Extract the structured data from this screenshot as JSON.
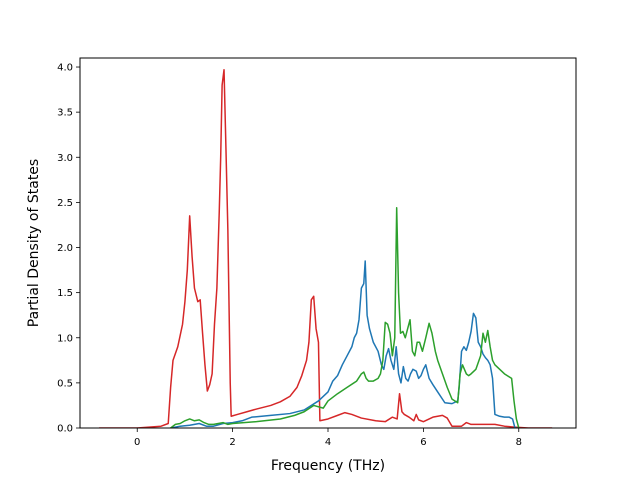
{
  "chart_data": {
    "type": "line",
    "title": "",
    "xlabel": "Frequency (THz)",
    "ylabel": "Partial Density of States",
    "xlim": [
      -1.2,
      9.2
    ],
    "ylim": [
      0.0,
      4.1
    ],
    "xticks": [
      0,
      2,
      4,
      6,
      8
    ],
    "xtick_labels": [
      "0",
      "2",
      "4",
      "6",
      "8"
    ],
    "yticks": [
      0.0,
      0.5,
      1.0,
      1.5,
      2.0,
      2.5,
      3.0,
      3.5,
      4.0
    ],
    "ytick_labels": [
      "0.0",
      "0.5",
      "1.0",
      "1.5",
      "2.0",
      "2.5",
      "3.0",
      "3.5",
      "4.0"
    ],
    "grid": false,
    "legend": "none",
    "series": [
      {
        "color": "#d62728",
        "points": [
          [
            -0.8,
            0.0
          ],
          [
            0.0,
            0.0
          ],
          [
            0.5,
            0.02
          ],
          [
            0.65,
            0.05
          ],
          [
            0.7,
            0.45
          ],
          [
            0.75,
            0.75
          ],
          [
            0.85,
            0.9
          ],
          [
            0.95,
            1.15
          ],
          [
            1.0,
            1.4
          ],
          [
            1.05,
            1.75
          ],
          [
            1.1,
            2.35
          ],
          [
            1.15,
            1.9
          ],
          [
            1.2,
            1.55
          ],
          [
            1.27,
            1.4
          ],
          [
            1.32,
            1.42
          ],
          [
            1.37,
            1.05
          ],
          [
            1.42,
            0.7
          ],
          [
            1.47,
            0.41
          ],
          [
            1.52,
            0.48
          ],
          [
            1.57,
            0.6
          ],
          [
            1.62,
            1.15
          ],
          [
            1.67,
            1.55
          ],
          [
            1.72,
            2.4
          ],
          [
            1.75,
            3.0
          ],
          [
            1.78,
            3.8
          ],
          [
            1.82,
            3.97
          ],
          [
            1.86,
            3.1
          ],
          [
            1.9,
            2.2
          ],
          [
            1.95,
            0.5
          ],
          [
            1.97,
            0.13
          ],
          [
            2.1,
            0.15
          ],
          [
            2.3,
            0.18
          ],
          [
            2.5,
            0.21
          ],
          [
            2.8,
            0.25
          ],
          [
            3.0,
            0.29
          ],
          [
            3.2,
            0.35
          ],
          [
            3.35,
            0.45
          ],
          [
            3.45,
            0.58
          ],
          [
            3.55,
            0.75
          ],
          [
            3.6,
            0.95
          ],
          [
            3.65,
            1.42
          ],
          [
            3.7,
            1.46
          ],
          [
            3.75,
            1.1
          ],
          [
            3.8,
            0.95
          ],
          [
            3.83,
            0.08
          ],
          [
            4.0,
            0.1
          ],
          [
            4.2,
            0.14
          ],
          [
            4.35,
            0.17
          ],
          [
            4.5,
            0.15
          ],
          [
            4.7,
            0.11
          ],
          [
            5.0,
            0.08
          ],
          [
            5.2,
            0.07
          ],
          [
            5.35,
            0.12
          ],
          [
            5.45,
            0.1
          ],
          [
            5.5,
            0.38
          ],
          [
            5.55,
            0.18
          ],
          [
            5.6,
            0.15
          ],
          [
            5.7,
            0.12
          ],
          [
            5.8,
            0.08
          ],
          [
            5.85,
            0.15
          ],
          [
            5.9,
            0.09
          ],
          [
            6.0,
            0.07
          ],
          [
            6.2,
            0.12
          ],
          [
            6.4,
            0.14
          ],
          [
            6.5,
            0.11
          ],
          [
            6.6,
            0.02
          ],
          [
            6.8,
            0.02
          ],
          [
            6.9,
            0.06
          ],
          [
            7.0,
            0.04
          ],
          [
            7.5,
            0.04
          ],
          [
            7.7,
            0.02
          ],
          [
            7.9,
            0.01
          ],
          [
            8.2,
            0.0
          ],
          [
            8.7,
            0.0
          ]
        ]
      },
      {
        "color": "#1f77b4",
        "points": [
          [
            0.7,
            0.0
          ],
          [
            0.9,
            0.02
          ],
          [
            1.1,
            0.03
          ],
          [
            1.3,
            0.05
          ],
          [
            1.45,
            0.02
          ],
          [
            1.6,
            0.02
          ],
          [
            1.8,
            0.05
          ],
          [
            2.0,
            0.06
          ],
          [
            2.2,
            0.08
          ],
          [
            2.4,
            0.12
          ],
          [
            2.8,
            0.14
          ],
          [
            3.2,
            0.16
          ],
          [
            3.5,
            0.2
          ],
          [
            3.8,
            0.3
          ],
          [
            4.0,
            0.4
          ],
          [
            4.1,
            0.52
          ],
          [
            4.2,
            0.58
          ],
          [
            4.3,
            0.7
          ],
          [
            4.4,
            0.8
          ],
          [
            4.5,
            0.9
          ],
          [
            4.55,
            1.0
          ],
          [
            4.6,
            1.05
          ],
          [
            4.65,
            1.2
          ],
          [
            4.7,
            1.55
          ],
          [
            4.75,
            1.6
          ],
          [
            4.78,
            1.85
          ],
          [
            4.82,
            1.25
          ],
          [
            4.87,
            1.1
          ],
          [
            4.95,
            0.95
          ],
          [
            5.05,
            0.85
          ],
          [
            5.12,
            0.7
          ],
          [
            5.17,
            0.65
          ],
          [
            5.22,
            0.8
          ],
          [
            5.27,
            0.88
          ],
          [
            5.32,
            0.75
          ],
          [
            5.38,
            0.65
          ],
          [
            5.43,
            0.9
          ],
          [
            5.48,
            0.6
          ],
          [
            5.53,
            0.5
          ],
          [
            5.58,
            0.68
          ],
          [
            5.63,
            0.55
          ],
          [
            5.68,
            0.52
          ],
          [
            5.73,
            0.6
          ],
          [
            5.78,
            0.65
          ],
          [
            5.85,
            0.63
          ],
          [
            5.9,
            0.55
          ],
          [
            5.95,
            0.58
          ],
          [
            6.0,
            0.65
          ],
          [
            6.05,
            0.7
          ],
          [
            6.12,
            0.55
          ],
          [
            6.2,
            0.48
          ],
          [
            6.3,
            0.4
          ],
          [
            6.45,
            0.28
          ],
          [
            6.6,
            0.27
          ],
          [
            6.72,
            0.3
          ],
          [
            6.75,
            0.45
          ],
          [
            6.8,
            0.85
          ],
          [
            6.85,
            0.9
          ],
          [
            6.9,
            0.86
          ],
          [
            6.95,
            0.95
          ],
          [
            7.0,
            1.07
          ],
          [
            7.05,
            1.27
          ],
          [
            7.1,
            1.22
          ],
          [
            7.15,
            0.95
          ],
          [
            7.2,
            0.9
          ],
          [
            7.25,
            0.82
          ],
          [
            7.3,
            0.78
          ],
          [
            7.35,
            0.75
          ],
          [
            7.4,
            0.7
          ],
          [
            7.45,
            0.55
          ],
          [
            7.5,
            0.15
          ],
          [
            7.6,
            0.13
          ],
          [
            7.7,
            0.12
          ],
          [
            7.8,
            0.12
          ],
          [
            7.87,
            0.1
          ],
          [
            7.92,
            0.0
          ],
          [
            8.0,
            0.0
          ]
        ]
      },
      {
        "color": "#2ca02c",
        "points": [
          [
            0.7,
            0.0
          ],
          [
            0.8,
            0.04
          ],
          [
            0.9,
            0.05
          ],
          [
            1.0,
            0.08
          ],
          [
            1.1,
            0.1
          ],
          [
            1.2,
            0.08
          ],
          [
            1.3,
            0.09
          ],
          [
            1.4,
            0.06
          ],
          [
            1.5,
            0.04
          ],
          [
            1.6,
            0.04
          ],
          [
            1.7,
            0.05
          ],
          [
            1.8,
            0.06
          ],
          [
            1.9,
            0.04
          ],
          [
            2.0,
            0.05
          ],
          [
            2.5,
            0.07
          ],
          [
            3.0,
            0.1
          ],
          [
            3.3,
            0.14
          ],
          [
            3.5,
            0.18
          ],
          [
            3.7,
            0.25
          ],
          [
            3.9,
            0.22
          ],
          [
            4.0,
            0.3
          ],
          [
            4.2,
            0.38
          ],
          [
            4.4,
            0.45
          ],
          [
            4.6,
            0.52
          ],
          [
            4.7,
            0.6
          ],
          [
            4.75,
            0.62
          ],
          [
            4.8,
            0.55
          ],
          [
            4.85,
            0.52
          ],
          [
            4.95,
            0.52
          ],
          [
            5.05,
            0.55
          ],
          [
            5.1,
            0.6
          ],
          [
            5.15,
            0.75
          ],
          [
            5.2,
            1.17
          ],
          [
            5.25,
            1.15
          ],
          [
            5.3,
            1.05
          ],
          [
            5.35,
            0.8
          ],
          [
            5.4,
            1.0
          ],
          [
            5.44,
            2.44
          ],
          [
            5.48,
            1.5
          ],
          [
            5.52,
            1.05
          ],
          [
            5.57,
            1.07
          ],
          [
            5.62,
            1.0
          ],
          [
            5.67,
            1.1
          ],
          [
            5.72,
            1.2
          ],
          [
            5.77,
            0.85
          ],
          [
            5.82,
            0.8
          ],
          [
            5.87,
            0.95
          ],
          [
            5.92,
            0.95
          ],
          [
            5.98,
            0.85
          ],
          [
            6.05,
            1.0
          ],
          [
            6.12,
            1.16
          ],
          [
            6.18,
            1.05
          ],
          [
            6.25,
            0.85
          ],
          [
            6.3,
            0.75
          ],
          [
            6.4,
            0.6
          ],
          [
            6.5,
            0.45
          ],
          [
            6.6,
            0.32
          ],
          [
            6.72,
            0.28
          ],
          [
            6.77,
            0.6
          ],
          [
            6.82,
            0.7
          ],
          [
            6.9,
            0.6
          ],
          [
            6.95,
            0.58
          ],
          [
            7.0,
            0.6
          ],
          [
            7.1,
            0.65
          ],
          [
            7.2,
            0.8
          ],
          [
            7.25,
            1.05
          ],
          [
            7.3,
            0.95
          ],
          [
            7.35,
            1.08
          ],
          [
            7.4,
            0.9
          ],
          [
            7.45,
            0.75
          ],
          [
            7.5,
            0.7
          ],
          [
            7.6,
            0.65
          ],
          [
            7.7,
            0.6
          ],
          [
            7.85,
            0.55
          ],
          [
            7.9,
            0.3
          ],
          [
            7.95,
            0.1
          ],
          [
            8.0,
            0.0
          ]
        ]
      }
    ]
  }
}
